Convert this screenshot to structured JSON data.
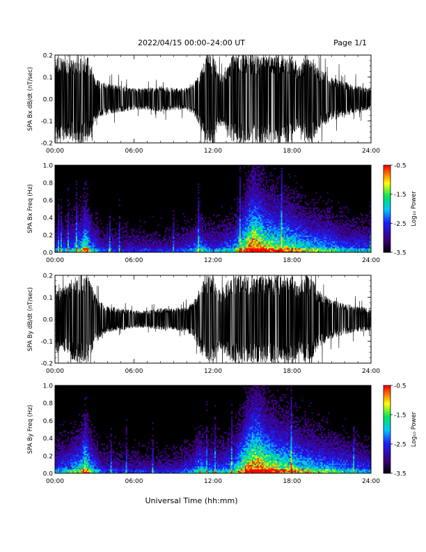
{
  "header": {
    "title": "2022/04/15  00:00–24:00 UT",
    "page": "Page 1/1"
  },
  "xaxis": {
    "label": "Universal Time (hh:mm)",
    "ticks": [
      "00:00",
      "06:00",
      "12:00",
      "18:00",
      "24:00"
    ],
    "range_hours": [
      0,
      24
    ]
  },
  "chart_data": [
    {
      "type": "line",
      "ylabel": "SPA Bx dB/dt (nT/sec)",
      "ylim": [
        -0.2,
        0.2
      ],
      "yticks": [
        "-0.2",
        "-0.1",
        "0.0",
        "0.1",
        "0.2"
      ],
      "yticks_values": [
        -0.2,
        -0.1,
        0.0,
        0.1,
        0.2
      ],
      "envelope": {
        "x_hours": [
          0,
          0.5,
          1,
          1.5,
          2,
          2.5,
          3,
          3.5,
          4,
          5,
          6,
          7,
          8,
          9,
          10,
          10.5,
          11,
          11.5,
          12,
          12.5,
          13,
          13.5,
          14,
          14.5,
          15,
          16,
          17,
          17.5,
          18,
          18.5,
          19,
          19.5,
          20,
          21,
          22,
          23,
          24
        ],
        "amplitude": [
          0.2,
          0.2,
          0.18,
          0.2,
          0.2,
          0.2,
          0.11,
          0.08,
          0.07,
          0.06,
          0.05,
          0.05,
          0.06,
          0.05,
          0.05,
          0.07,
          0.12,
          0.2,
          0.2,
          0.12,
          0.15,
          0.2,
          0.2,
          0.2,
          0.2,
          0.2,
          0.2,
          0.2,
          0.2,
          0.14,
          0.2,
          0.2,
          0.14,
          0.1,
          0.08,
          0.06,
          0.05
        ]
      }
    },
    {
      "type": "heatmap",
      "ylabel": "SPA Bx Freq (Hz)",
      "ylim": [
        0.0,
        1.0
      ],
      "yticks": [
        "0.0",
        "0.2",
        "0.4",
        "0.6",
        "0.8",
        "1.0"
      ],
      "yticks_values": [
        0.0,
        0.2,
        0.4,
        0.6,
        0.8,
        1.0
      ],
      "colorbar": {
        "label": "Log₁₀ Power",
        "range": [
          -3.5,
          -0.5
        ],
        "ticks": [
          "-0.5",
          "-1.5",
          "-2.5",
          "-3.5"
        ],
        "ticks_values": [
          -0.5,
          -1.5,
          -2.5,
          -3.5
        ]
      },
      "activity": {
        "x_hours": [
          0,
          1,
          2,
          2.3,
          2.7,
          3.5,
          5,
          7,
          9,
          10.5,
          11,
          11.5,
          12.5,
          13.5,
          14.5,
          15,
          15.5,
          16,
          17,
          18,
          19,
          20,
          21,
          22,
          23,
          24
        ],
        "level": [
          0.35,
          0.4,
          0.55,
          0.75,
          0.5,
          0.3,
          0.25,
          0.25,
          0.25,
          0.35,
          0.5,
          0.35,
          0.35,
          0.45,
          0.8,
          0.95,
          0.9,
          0.8,
          0.75,
          0.7,
          0.6,
          0.55,
          0.5,
          0.4,
          0.4,
          0.35
        ]
      }
    },
    {
      "type": "line",
      "ylabel": "SPA By dB/dt (nT/sec)",
      "ylim": [
        -0.2,
        0.2
      ],
      "yticks": [
        "-0.2",
        "-0.1",
        "0.0",
        "0.1",
        "0.2"
      ],
      "yticks_values": [
        -0.2,
        -0.1,
        0.0,
        0.1,
        0.2
      ],
      "envelope": {
        "x_hours": [
          0,
          0.5,
          1,
          1.5,
          2,
          2.5,
          3,
          3.5,
          4,
          5,
          6,
          7,
          8,
          9,
          10,
          10.5,
          11,
          11.5,
          12,
          12.5,
          13,
          13.5,
          14,
          14.5,
          15,
          16,
          17,
          17.5,
          18,
          18.5,
          19,
          19.5,
          20,
          21,
          22,
          23,
          24
        ],
        "amplitude": [
          0.17,
          0.14,
          0.16,
          0.2,
          0.2,
          0.2,
          0.12,
          0.08,
          0.06,
          0.05,
          0.04,
          0.04,
          0.05,
          0.05,
          0.06,
          0.08,
          0.15,
          0.2,
          0.2,
          0.13,
          0.17,
          0.2,
          0.2,
          0.2,
          0.2,
          0.2,
          0.2,
          0.2,
          0.2,
          0.16,
          0.2,
          0.2,
          0.13,
          0.09,
          0.07,
          0.06,
          0.05
        ]
      }
    },
    {
      "type": "heatmap",
      "ylabel": "SPA By Freq (Hz)",
      "ylim": [
        0.0,
        1.0
      ],
      "yticks": [
        "0.0",
        "0.2",
        "0.4",
        "0.6",
        "0.8",
        "1.0"
      ],
      "yticks_values": [
        0.0,
        0.2,
        0.4,
        0.6,
        0.8,
        1.0
      ],
      "colorbar": {
        "label": "Log₁₀ Power",
        "range": [
          -3.5,
          -0.5
        ],
        "ticks": [
          "-0.5",
          "-1.5",
          "-2.5",
          "-3.5"
        ],
        "ticks_values": [
          -0.5,
          -1.5,
          -2.5,
          -3.5
        ]
      },
      "activity": {
        "x_hours": [
          0,
          1,
          2,
          2.3,
          2.7,
          3.5,
          5,
          7,
          9,
          10.5,
          11,
          11.5,
          12.5,
          13.5,
          14.5,
          15,
          15.5,
          16,
          17,
          18,
          19,
          20,
          21,
          22,
          23,
          24
        ],
        "level": [
          0.4,
          0.45,
          0.6,
          0.8,
          0.55,
          0.3,
          0.25,
          0.25,
          0.25,
          0.35,
          0.55,
          0.4,
          0.4,
          0.5,
          0.85,
          0.95,
          0.95,
          0.85,
          0.75,
          0.7,
          0.6,
          0.55,
          0.5,
          0.45,
          0.4,
          0.35
        ]
      }
    }
  ],
  "colors": {
    "background": "#ffffff",
    "trace": "#000000",
    "spectrogram_background": "#000000"
  }
}
